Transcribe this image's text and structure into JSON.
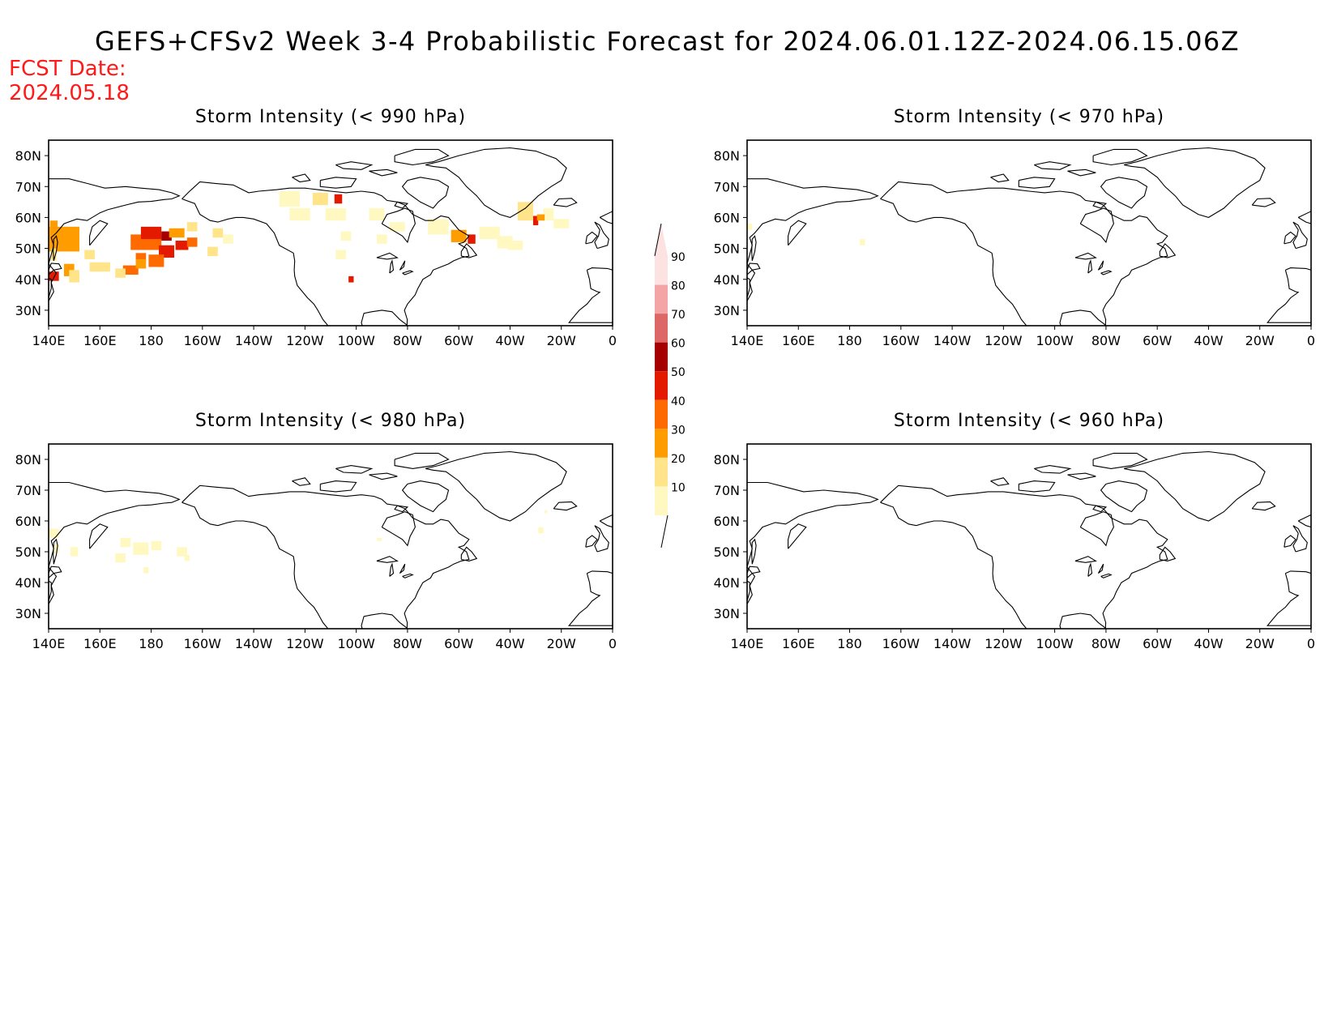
{
  "header": {
    "title": "GEFS+CFSv2 Week 3-4 Probabilistic Forecast for 2024.06.01.12Z-2024.06.15.06Z",
    "fcst_label": "FCST Date:",
    "fcst_date": "2024.05.18"
  },
  "colors": {
    "title": "#000000",
    "fcst": "#ff1a1a",
    "coast": "#000000"
  },
  "axes": {
    "lon_ticks": [
      "140E",
      "160E",
      "180",
      "160W",
      "140W",
      "120W",
      "100W",
      "80W",
      "60W",
      "40W",
      "20W",
      "0"
    ],
    "lat_ticks": [
      "80N",
      "70N",
      "60N",
      "50N",
      "40N",
      "30N"
    ],
    "lon_range_deg_east": [
      140,
      360
    ],
    "lat_range": [
      25,
      85
    ]
  },
  "panels": [
    {
      "id": "p990",
      "title": "Storm Intensity (< 990 hPa)",
      "cells": [
        [
          142,
          57,
          3,
          4,
          3
        ],
        [
          146,
          53,
          12,
          8,
          3
        ],
        [
          142,
          48,
          2,
          4,
          2
        ],
        [
          142,
          41,
          4,
          3,
          5
        ],
        [
          148,
          43,
          4,
          4,
          3
        ],
        [
          150,
          41,
          4,
          4,
          2
        ],
        [
          160,
          44,
          8,
          3,
          2
        ],
        [
          172,
          43,
          6,
          3,
          4
        ],
        [
          176,
          47,
          4,
          3,
          4
        ],
        [
          178,
          52,
          12,
          5,
          4
        ],
        [
          180,
          55,
          8,
          4,
          5
        ],
        [
          186,
          54,
          4,
          3,
          6
        ],
        [
          186,
          49,
          6,
          4,
          5
        ],
        [
          192,
          51,
          5,
          3,
          5
        ],
        [
          196,
          52,
          4,
          3,
          4
        ],
        [
          182,
          46,
          6,
          4,
          4
        ],
        [
          190,
          55,
          6,
          3,
          3
        ],
        [
          196,
          57,
          4,
          3,
          2
        ],
        [
          204,
          49,
          4,
          3,
          2
        ],
        [
          206,
          55,
          4,
          3,
          2
        ],
        [
          210,
          53,
          4,
          3,
          1
        ],
        [
          156,
          48,
          4,
          3,
          2
        ],
        [
          168,
          42,
          4,
          3,
          2
        ],
        [
          176,
          45,
          4,
          3,
          3
        ],
        [
          234,
          66,
          8,
          5,
          1
        ],
        [
          246,
          66,
          6,
          4,
          2
        ],
        [
          253,
          66,
          3,
          3,
          5
        ],
        [
          238,
          61,
          8,
          4,
          1
        ],
        [
          252,
          61,
          8,
          4,
          1
        ],
        [
          256,
          54,
          4,
          3,
          1
        ],
        [
          254,
          48,
          4,
          3,
          1
        ],
        [
          258,
          40,
          2,
          2,
          5
        ],
        [
          268,
          61,
          6,
          4,
          1
        ],
        [
          276,
          57,
          6,
          3,
          1
        ],
        [
          270,
          53,
          4,
          3,
          1
        ],
        [
          292,
          57,
          8,
          5,
          1
        ],
        [
          300,
          54,
          6,
          4,
          3
        ],
        [
          305,
          53,
          3,
          3,
          5
        ],
        [
          312,
          55,
          8,
          4,
          1
        ],
        [
          318,
          52,
          6,
          4,
          1
        ],
        [
          326,
          62,
          6,
          6,
          2
        ],
        [
          330,
          59,
          2,
          3,
          5
        ],
        [
          335,
          61,
          4,
          4,
          1
        ],
        [
          340,
          58,
          6,
          3,
          1
        ],
        [
          322,
          51,
          6,
          3,
          1
        ],
        [
          332,
          60,
          3,
          2,
          3
        ]
      ]
    },
    {
      "id": "p970",
      "title": "Storm Intensity (< 970 hPa)",
      "cells": [
        [
          141,
          57,
          2,
          2,
          1
        ],
        [
          185,
          52,
          2,
          2,
          1
        ]
      ]
    },
    {
      "id": "p980",
      "title": "Storm Intensity (< 980 hPa)",
      "cells": [
        [
          142,
          56,
          4,
          3,
          1
        ],
        [
          143,
          51,
          2,
          3,
          1
        ],
        [
          150,
          50,
          3,
          3,
          1
        ],
        [
          170,
          53,
          4,
          3,
          1
        ],
        [
          168,
          48,
          4,
          3,
          1
        ],
        [
          176,
          51,
          6,
          4,
          1
        ],
        [
          182,
          52,
          4,
          3,
          1
        ],
        [
          178,
          44,
          2,
          2,
          1
        ],
        [
          192,
          50,
          4,
          3,
          1
        ],
        [
          194,
          48,
          2,
          2,
          1
        ],
        [
          332,
          57,
          2,
          2,
          1
        ],
        [
          334,
          63,
          1,
          1,
          1
        ],
        [
          269,
          54,
          2,
          1,
          1
        ]
      ]
    },
    {
      "id": "p960",
      "title": "Storm Intensity (< 960 hPa)",
      "cells": []
    }
  ],
  "colorbar": {
    "labels": [
      "90",
      "80",
      "70",
      "60",
      "50",
      "40",
      "30",
      "20",
      "10"
    ],
    "levels": [
      10,
      20,
      30,
      40,
      50,
      60,
      70,
      80,
      90
    ],
    "colors": [
      "#fff8c0",
      "#ffe48a",
      "#ff9d00",
      "#ff6a00",
      "#e31a00",
      "#a50000",
      "#dd6666",
      "#f4a4a4",
      "#fde2e2"
    ]
  }
}
